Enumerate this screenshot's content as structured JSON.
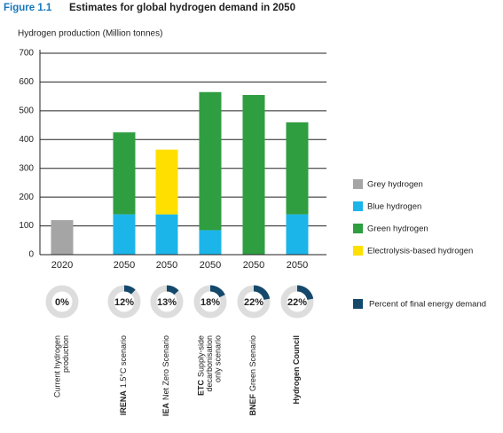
{
  "chart_data": {
    "type": "bar",
    "stacked": true,
    "figure_label": "Figure 1.1",
    "title": "Estimates for global hydrogen demand in 2050",
    "y_label": "Hydrogen production (Million tonnes)",
    "categories": [
      "2020",
      "2050",
      "2050",
      "2050",
      "2050",
      "2050"
    ],
    "series": [
      {
        "name": "Grey hydrogen",
        "color": "#a5a5a5",
        "values": [
          120,
          null,
          null,
          null,
          null,
          null
        ]
      },
      {
        "name": "Blue hydrogen",
        "color": "#1cb5ea",
        "values": [
          null,
          140,
          140,
          85,
          null,
          140
        ]
      },
      {
        "name": "Green hydrogen",
        "color": "#2f9e40",
        "values": [
          null,
          285,
          null,
          480,
          555,
          320
        ]
      },
      {
        "name": "Electrolysis-based hydrogen",
        "color": "#ffdf00",
        "values": [
          null,
          null,
          225,
          null,
          null,
          null
        ]
      }
    ],
    "share": {
      "name": "Percent of final energy demand",
      "color": "#15496b",
      "track_color": "#dddddd",
      "values": [
        0,
        12,
        13,
        18,
        22,
        22
      ],
      "value_labels": [
        "0%",
        "12%",
        "13%",
        "18%",
        "22%",
        "22%"
      ]
    },
    "scenarios": [
      {
        "detail": [
          "Current hydrogen",
          "production"
        ]
      },
      {
        "name": "IRENA",
        "detail": [
          "1.5°C scenario"
        ]
      },
      {
        "name": "IEA",
        "detail": [
          "Net Zero Scenario"
        ]
      },
      {
        "name": "ETC",
        "detail": [
          "Supply-side",
          "decarbonisation",
          "only scenario"
        ]
      },
      {
        "name": "BNEF",
        "detail": [
          "Green Scenario"
        ]
      },
      {
        "name": "Hydrogen Council"
      }
    ],
    "ylim": [
      0,
      700
    ],
    "yticks": [
      0,
      100,
      200,
      300,
      400,
      500,
      600,
      700
    ],
    "grid": true
  }
}
